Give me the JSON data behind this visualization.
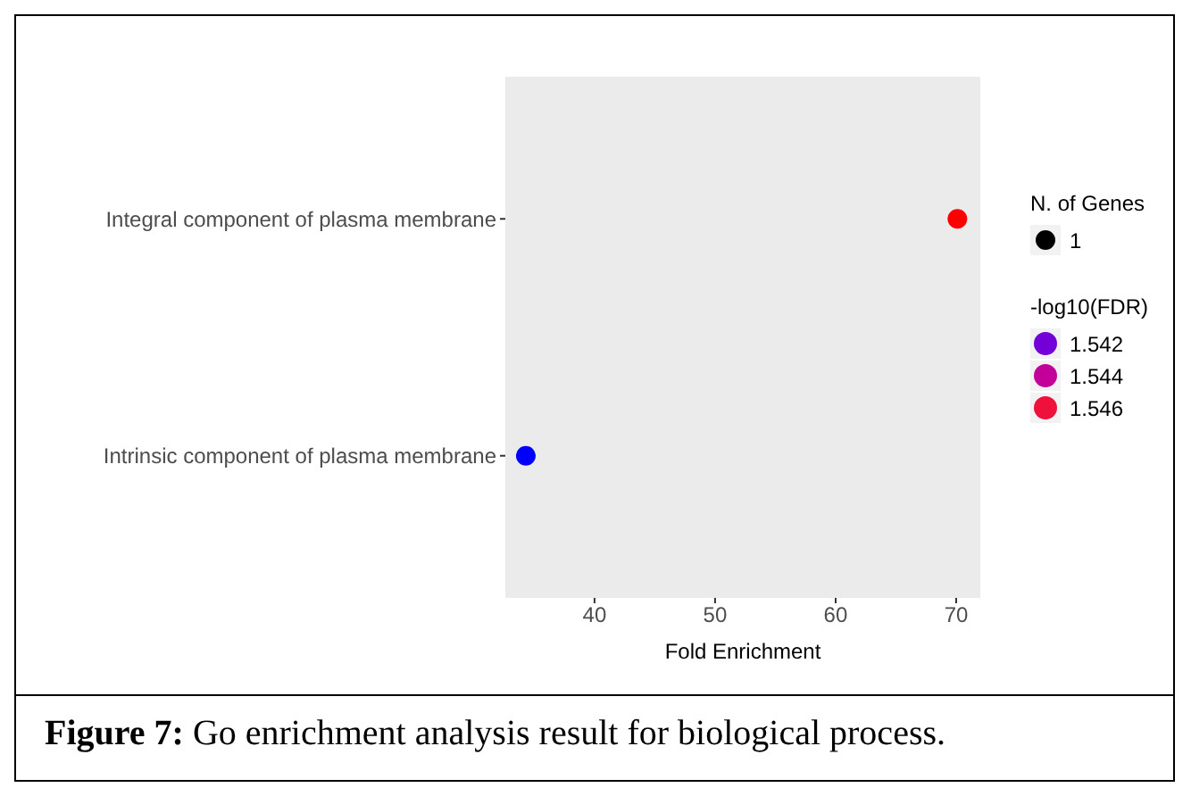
{
  "chart_data": {
    "type": "scatter",
    "orientation": "horizontal",
    "categories": [
      "Integral component of plasma membrane",
      "Intrinsic component of plasma membrane"
    ],
    "values": [
      70.1,
      34.3
    ],
    "sizes": [
      1,
      1
    ],
    "size_legend": [
      1
    ],
    "legend_title": "N. of Genes",
    "colors": [
      "#ff0000",
      "#0000ff"
    ],
    "clabel": "-log10(FDR)",
    "clim": [
      1.5405,
      1.547
    ],
    "cticks": [
      1.542,
      1.544,
      1.546
    ],
    "xlabel": "Fold Enrichment",
    "xlim": [
      32.6,
      72
    ],
    "xticks": [
      40,
      50,
      60,
      70
    ],
    "grid": false,
    "annotations": [
      "Figure 7: Go enrichment analysis result for biological process."
    ]
  }
}
